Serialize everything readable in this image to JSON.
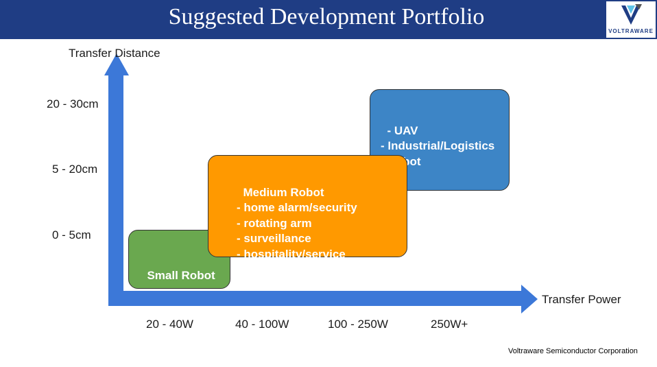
{
  "header": {
    "title": "Suggested Development Portfolio",
    "logo_text": "VOLTRAWARE"
  },
  "axes": {
    "y_label": "Transfer Distance",
    "x_label": "Transfer Power",
    "y_ticks": [
      "20 - 30cm",
      "5 - 20cm",
      "0 - 5cm"
    ],
    "x_ticks": [
      "20 - 40W",
      "40 - 100W",
      "100 - 250W",
      "250W+"
    ]
  },
  "boxes": {
    "small": {
      "text": "Small Robot",
      "color": "#6aa84f"
    },
    "medium": {
      "text": "Medium Robot\n- home alarm/security\n- rotating arm\n- surveillance\n- hospitality/service",
      "color": "#ff9900"
    },
    "large": {
      "text": "- UAV\n- Industrial/Logistics\n  Robot",
      "color": "#3d85c6"
    }
  },
  "footer": "Voltraware Semiconductor Corporation",
  "colors": {
    "header": "#1f3d84",
    "axis": "#3c78d8"
  }
}
